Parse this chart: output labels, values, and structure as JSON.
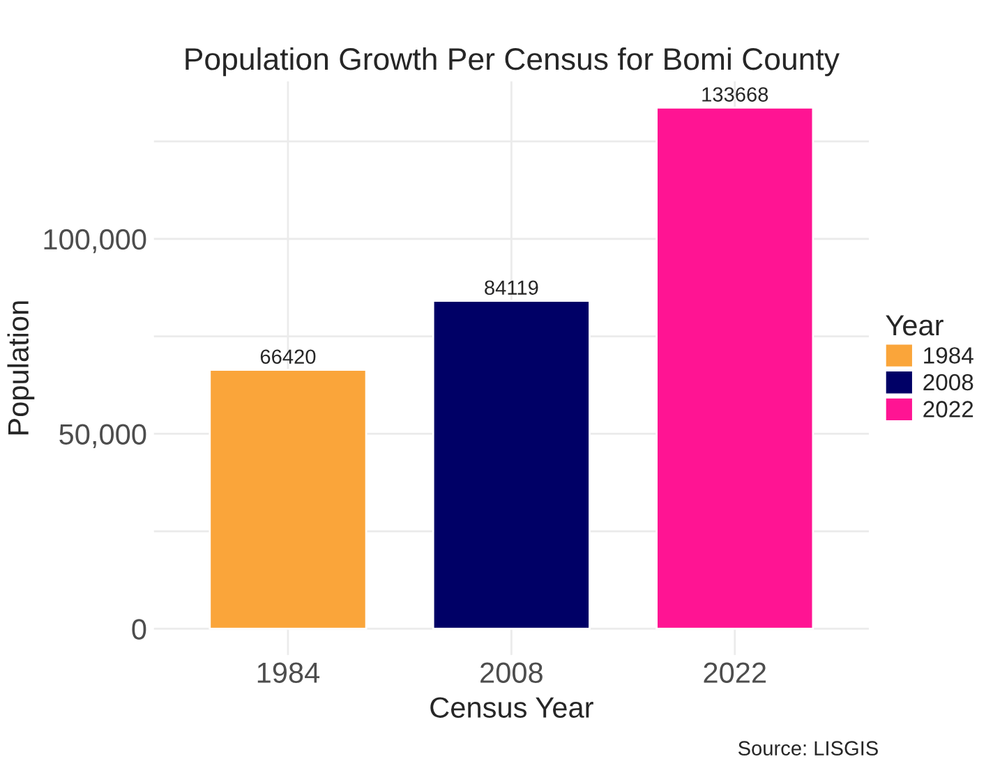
{
  "chart_data": {
    "type": "bar",
    "title": "Population Growth Per Census for Bomi County",
    "xlabel": "Census Year",
    "ylabel": "Population",
    "legend_title": "Year",
    "categories": [
      "1984",
      "2008",
      "2022"
    ],
    "series": [
      {
        "name": "1984",
        "color": "#faa53a",
        "values": [
          66420,
          null,
          null
        ]
      },
      {
        "name": "2008",
        "color": "#000066",
        "values": [
          null,
          84119,
          null
        ]
      },
      {
        "name": "2022",
        "color": "#ff1493",
        "values": [
          null,
          null,
          133668
        ]
      }
    ],
    "data_labels": true,
    "ylim": [
      -6700,
      140400
    ],
    "yticks": [
      0,
      {
        "value": 25000,
        "label": null
      },
      {
        "value": 50000,
        "label": "50,000"
      },
      {
        "value": 75000,
        "label": null
      },
      {
        "value": 100000,
        "label": "100,000"
      },
      {
        "value": 125000,
        "label": null
      }
    ],
    "grid": true,
    "legend": "right",
    "annotations": [
      "Source: LISGIS"
    ]
  }
}
